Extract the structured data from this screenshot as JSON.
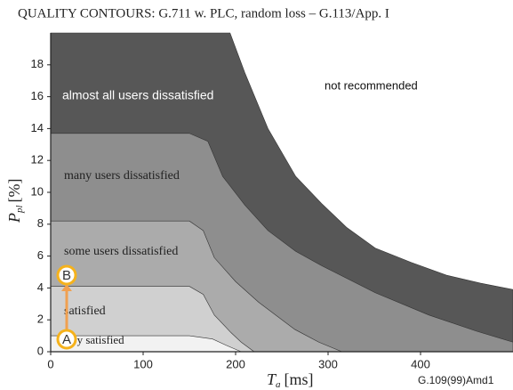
{
  "chart_data": {
    "type": "contour",
    "title": "QUALITY CONTOURS: G.711 w. PLC, random loss – G.113/App. I",
    "xlabel": {
      "main": "T",
      "sub": "a",
      "unit": "[ms]"
    },
    "ylabel": {
      "main": "P",
      "sub": "pl",
      "unit": "[%]"
    },
    "xlim": [
      0,
      500
    ],
    "ylim": [
      0,
      20
    ],
    "xticks": [
      0,
      100,
      200,
      300,
      400
    ],
    "yticks": [
      0,
      2,
      4,
      6,
      8,
      10,
      12,
      14,
      16,
      18
    ],
    "background_label": "not recommended",
    "regions": [
      {
        "label": "almost all users dissatisfied",
        "color": "#575757",
        "boundary": {
          "x": [
            194,
            210,
            235,
            265,
            293,
            320,
            351,
            390,
            428,
            465,
            500
          ],
          "y": [
            20,
            17.5,
            14,
            11,
            9.3,
            7.8,
            6.5,
            5.6,
            4.8,
            4.3,
            3.9
          ]
        }
      },
      {
        "label": "many users dissatisfied",
        "color": "#8e8e8e",
        "boundary": {
          "x": [
            0,
            150,
            170,
            186,
            210,
            235,
            265,
            293,
            351,
            409,
            460,
            500
          ],
          "y": [
            13.7,
            13.7,
            13.2,
            11,
            9.2,
            7.6,
            6.3,
            5.4,
            3.7,
            2.3,
            1.3,
            0.6
          ]
        }
      },
      {
        "label": "some users dissatisfied",
        "color": "#ababab",
        "boundary": {
          "x": [
            0,
            150,
            165,
            177,
            200,
            225,
            264,
            290,
            315
          ],
          "y": [
            8.2,
            8.2,
            7.6,
            5.9,
            4.4,
            3.1,
            1.4,
            0.6,
            0
          ]
        }
      },
      {
        "label": "satisfied",
        "color": "#d0d0d0",
        "boundary": {
          "x": [
            0,
            150,
            165,
            177,
            195,
            206,
            220
          ],
          "y": [
            4.1,
            4.1,
            3.6,
            2.3,
            1.2,
            0.6,
            0
          ]
        }
      },
      {
        "label": "very satisfied",
        "color": "#f2f2f2",
        "boundary": {
          "x": [
            0,
            150,
            175,
            190,
            206
          ],
          "y": [
            1.0,
            1.0,
            0.8,
            0.4,
            0
          ]
        }
      }
    ],
    "markers": [
      "A",
      "B"
    ],
    "footnote": "G.109(99)Amd1"
  }
}
